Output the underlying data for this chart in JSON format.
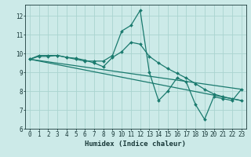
{
  "title": "",
  "xlabel": "Humidex (Indice chaleur)",
  "ylabel": "",
  "xlim": [
    -0.5,
    23.5
  ],
  "ylim": [
    6,
    12.6
  ],
  "yticks": [
    6,
    7,
    8,
    9,
    10,
    11,
    12
  ],
  "xticks": [
    0,
    1,
    2,
    3,
    4,
    5,
    6,
    7,
    8,
    9,
    10,
    11,
    12,
    13,
    14,
    15,
    16,
    17,
    18,
    19,
    20,
    21,
    22,
    23
  ],
  "bg_color": "#cceae8",
  "grid_color": "#aad4d0",
  "line_color": "#1a7a6e",
  "lines": [
    {
      "x": [
        0,
        1,
        2,
        3,
        4,
        5,
        6,
        7,
        8,
        9,
        10,
        11,
        12,
        13,
        14,
        15,
        16,
        17,
        18,
        19,
        20,
        21,
        22,
        23
      ],
      "y": [
        9.7,
        9.9,
        9.9,
        9.9,
        9.8,
        9.7,
        9.6,
        9.6,
        9.6,
        9.9,
        11.2,
        11.5,
        12.3,
        9.0,
        7.5,
        8.0,
        8.7,
        8.5,
        7.3,
        6.5,
        7.7,
        7.6,
        7.5,
        8.1
      ],
      "marker": "D",
      "ms": 2.0,
      "lw": 0.9
    },
    {
      "x": [
        0,
        1,
        2,
        3,
        4,
        5,
        6,
        7,
        8,
        9,
        10,
        11,
        12,
        13,
        14,
        15,
        16,
        17,
        18,
        19,
        20,
        21,
        22,
        23
      ],
      "y": [
        9.7,
        9.85,
        9.85,
        9.9,
        9.8,
        9.75,
        9.65,
        9.5,
        9.3,
        9.8,
        10.1,
        10.6,
        10.5,
        9.85,
        9.5,
        9.2,
        8.95,
        8.7,
        8.4,
        8.1,
        7.85,
        7.7,
        7.6,
        7.5
      ],
      "marker": "D",
      "ms": 2.0,
      "lw": 0.9
    },
    {
      "x": [
        0,
        23
      ],
      "y": [
        9.7,
        8.1
      ],
      "marker": null,
      "ms": 0,
      "lw": 0.9
    },
    {
      "x": [
        0,
        23
      ],
      "y": [
        9.7,
        7.5
      ],
      "marker": null,
      "ms": 0,
      "lw": 0.9
    }
  ],
  "xlabel_fontsize": 6.5,
  "tick_fontsize": 5.5
}
